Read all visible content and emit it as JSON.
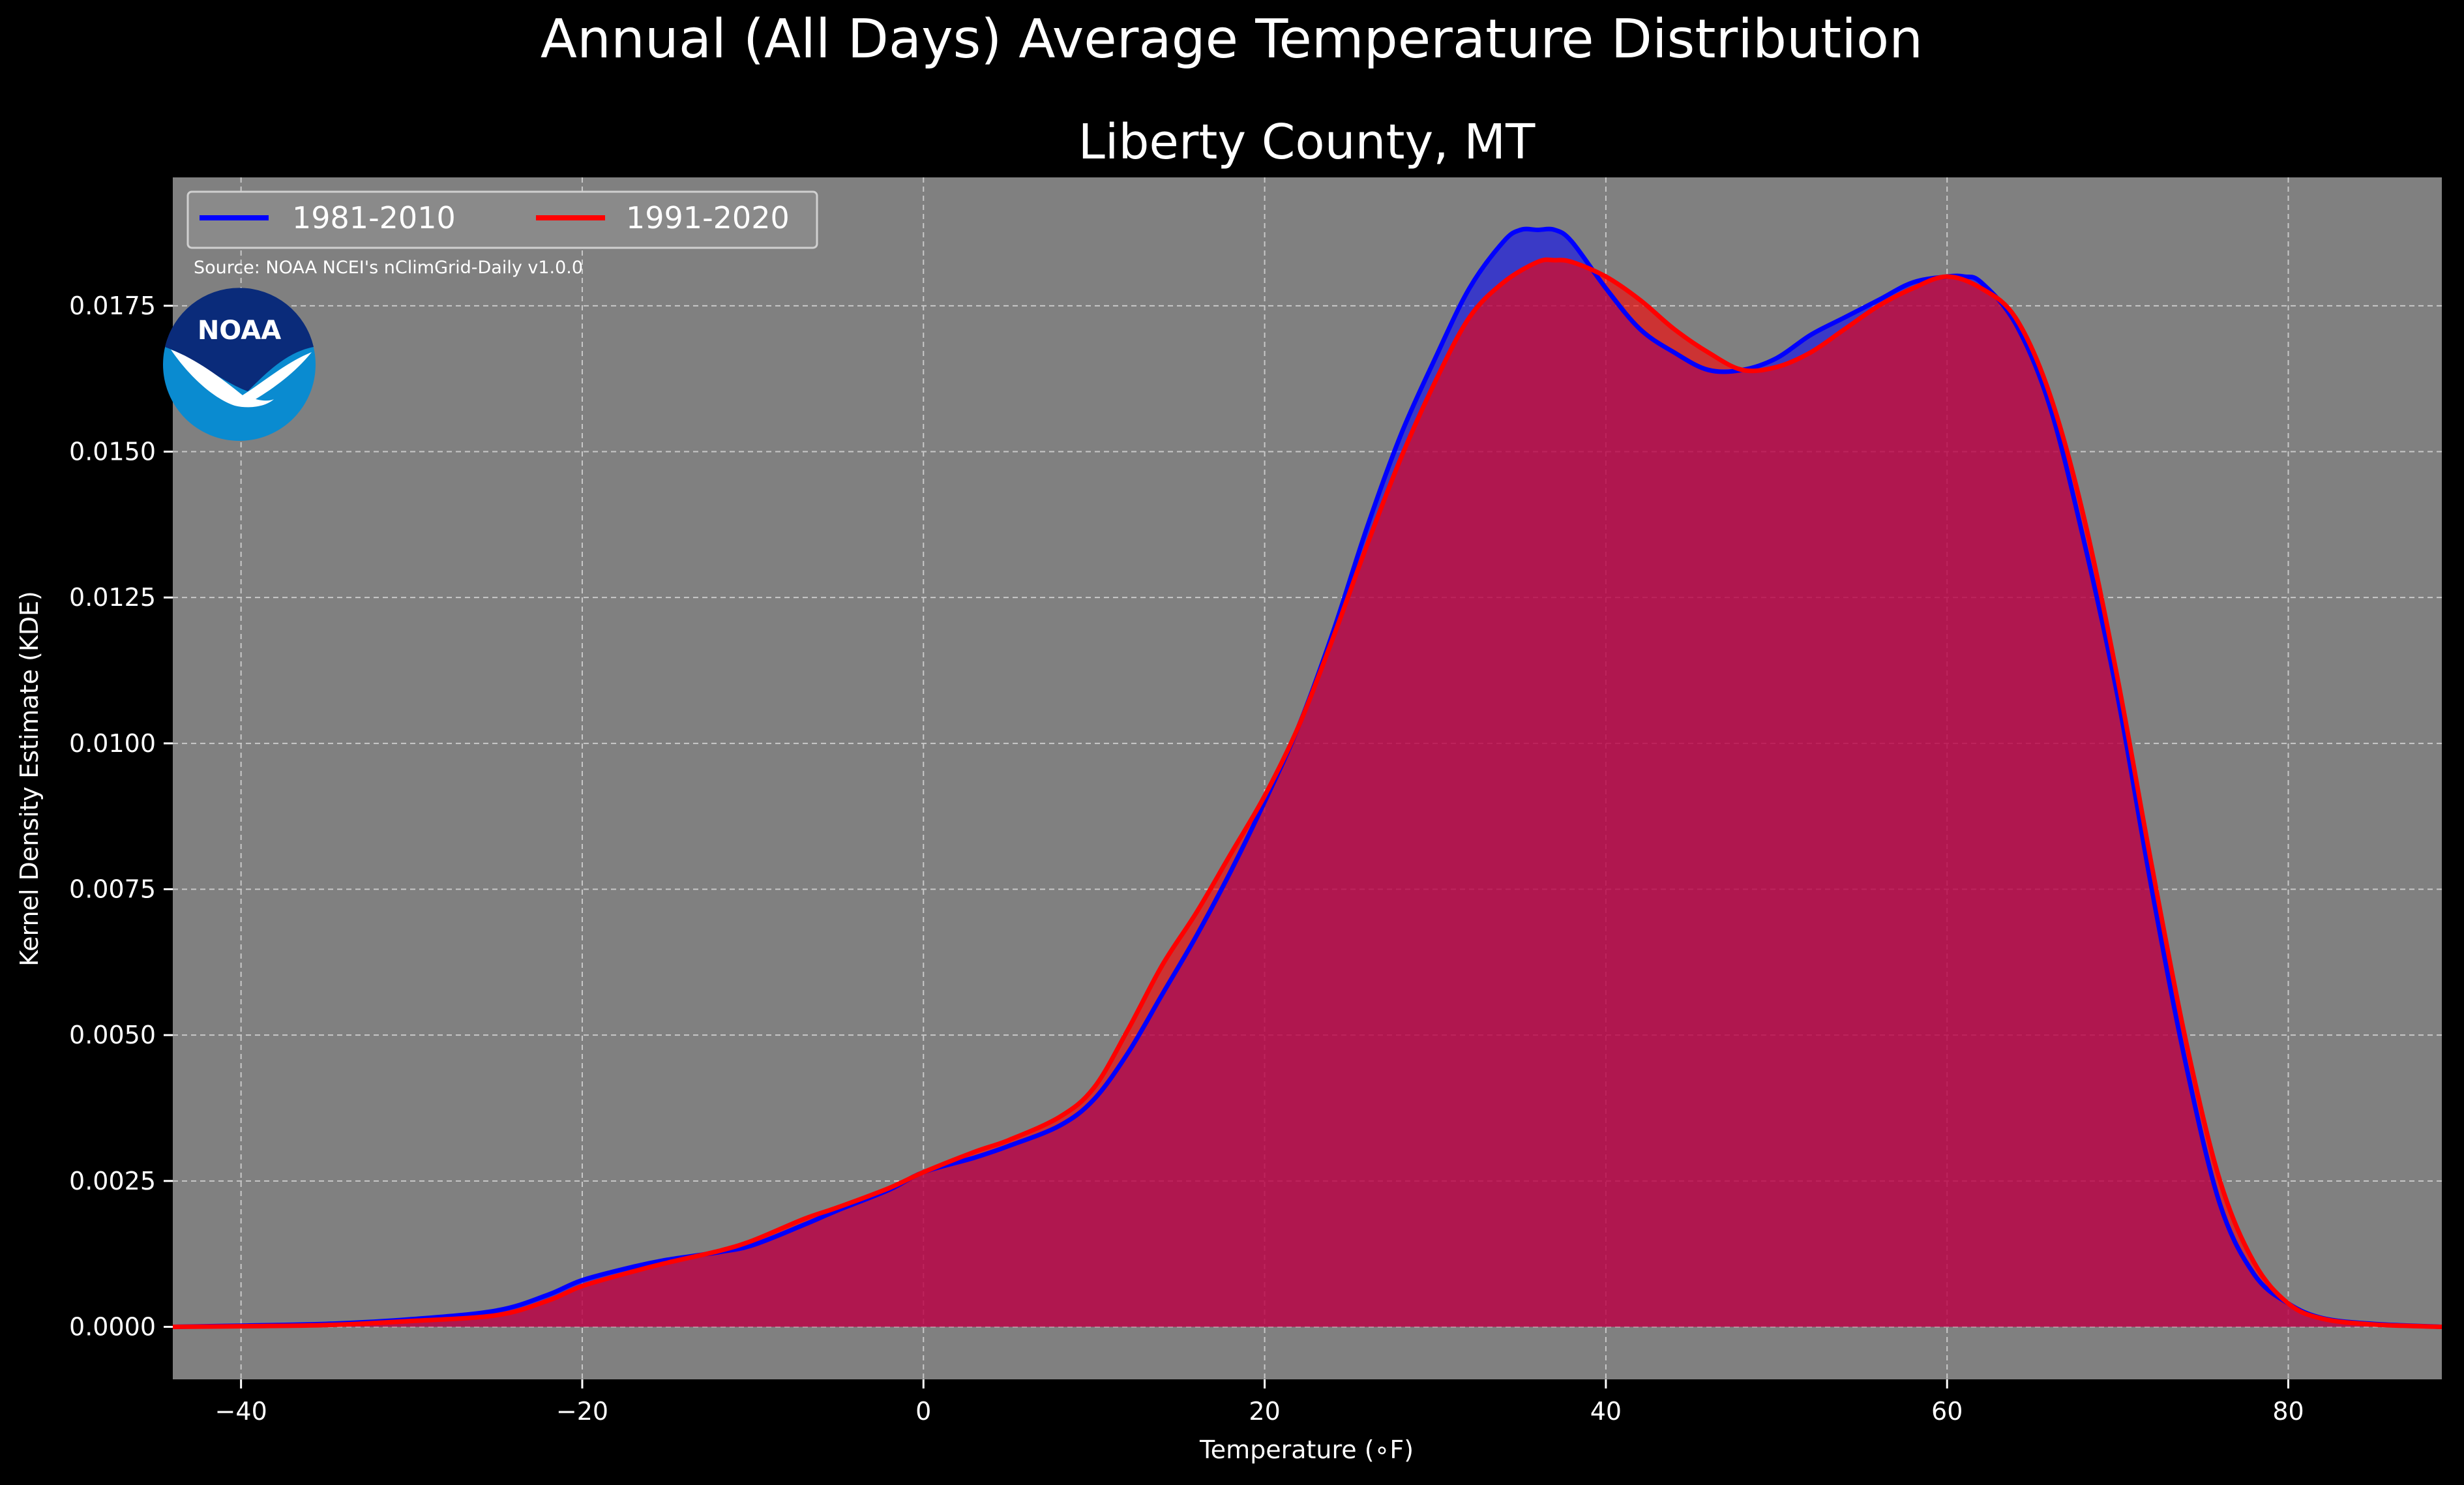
{
  "chart_data": {
    "type": "area",
    "title": "Annual (All Days) Average Temperature Distribution",
    "subtitle": "Liberty County, MT",
    "xlabel": "Temperature (∘F)",
    "ylabel": "Kernel Density Estimate (KDE)",
    "source": "Source: NOAA NCEI's nClimGrid-Daily v1.0.0",
    "logo_text": "NOAA",
    "xlim": [
      -44,
      89
    ],
    "ylim": [
      -0.0009,
      0.0197
    ],
    "x_ticks": [
      -40,
      -20,
      0,
      20,
      40,
      60,
      80
    ],
    "x_tick_labels": [
      "−40",
      "−20",
      "0",
      "20",
      "40",
      "60",
      "80"
    ],
    "y_ticks": [
      0.0,
      0.0025,
      0.005,
      0.0075,
      0.01,
      0.0125,
      0.015,
      0.0175
    ],
    "y_tick_labels": [
      "0.0000",
      "0.0025",
      "0.0050",
      "0.0075",
      "0.0100",
      "0.0125",
      "0.0150",
      "0.0175"
    ],
    "grid": true,
    "legend_position": "top-left",
    "colors": {
      "figure_bg": "#000000",
      "axes_bg": "#808080",
      "text": "#ffffff",
      "series_1981": "#0000ff",
      "series_1991": "#ff0000",
      "overlap_fill": "#9e1f5f",
      "logo_blue": "#0a8bd0",
      "logo_navy": "#0a2b7a"
    },
    "series": [
      {
        "name": "1981-2010",
        "color": "#0000ff",
        "x": [
          -44,
          -40,
          -35,
          -30,
          -25,
          -22,
          -20,
          -17,
          -15,
          -12,
          -10,
          -7,
          -5,
          -2,
          0,
          3,
          5,
          8,
          10,
          12,
          14,
          16,
          18,
          20,
          22,
          24,
          26,
          28,
          30,
          32,
          34,
          35,
          36,
          37,
          38,
          40,
          42,
          44,
          46,
          48,
          50,
          52,
          54,
          56,
          58,
          60,
          61,
          62,
          64,
          66,
          68,
          70,
          72,
          74,
          76,
          78,
          80,
          82,
          85,
          89
        ],
        "y": [
          0.0,
          2e-05,
          5e-05,
          0.00013,
          0.00028,
          0.00055,
          0.0008,
          0.00103,
          0.00115,
          0.00128,
          0.0014,
          0.00175,
          0.002,
          0.00235,
          0.00265,
          0.0029,
          0.0031,
          0.00345,
          0.0039,
          0.0047,
          0.0057,
          0.0067,
          0.0078,
          0.009,
          0.0103,
          0.0119,
          0.0137,
          0.0153,
          0.0166,
          0.0178,
          0.0186,
          0.0188,
          0.0188,
          0.0188,
          0.0186,
          0.0178,
          0.0171,
          0.0167,
          0.0164,
          0.0164,
          0.0166,
          0.017,
          0.0173,
          0.0176,
          0.0179,
          0.018,
          0.018,
          0.0179,
          0.0172,
          0.0158,
          0.0135,
          0.0108,
          0.0075,
          0.0045,
          0.0021,
          0.0009,
          0.0004,
          0.00015,
          5e-05,
          0.0
        ]
      },
      {
        "name": "1991-2020",
        "color": "#ff0000",
        "x": [
          -44,
          -40,
          -35,
          -30,
          -25,
          -22,
          -20,
          -17,
          -15,
          -12,
          -10,
          -7,
          -5,
          -2,
          0,
          3,
          5,
          8,
          10,
          12,
          14,
          16,
          18,
          20,
          22,
          24,
          26,
          28,
          30,
          32,
          34,
          36,
          37,
          38,
          40,
          42,
          44,
          46,
          48,
          50,
          52,
          54,
          56,
          58,
          60,
          62,
          64,
          66,
          68,
          70,
          72,
          74,
          76,
          78,
          80,
          82,
          85,
          89
        ],
        "y": [
          0.0,
          1e-05,
          3e-05,
          0.0001,
          0.0002,
          0.00045,
          0.0007,
          0.00095,
          0.0011,
          0.0013,
          0.00148,
          0.00185,
          0.00205,
          0.00238,
          0.00265,
          0.003,
          0.0032,
          0.0036,
          0.0041,
          0.0051,
          0.0062,
          0.0071,
          0.0081,
          0.0091,
          0.0103,
          0.0118,
          0.0134,
          0.0149,
          0.0162,
          0.0173,
          0.0179,
          0.01825,
          0.01828,
          0.01825,
          0.018,
          0.0176,
          0.0171,
          0.0167,
          0.0164,
          0.01645,
          0.0167,
          0.0171,
          0.0175,
          0.0178,
          0.018,
          0.0178,
          0.0173,
          0.016,
          0.0139,
          0.0111,
          0.0079,
          0.0049,
          0.0025,
          0.0011,
          0.0004,
          0.00014,
          4e-05,
          0.0
        ]
      }
    ]
  }
}
